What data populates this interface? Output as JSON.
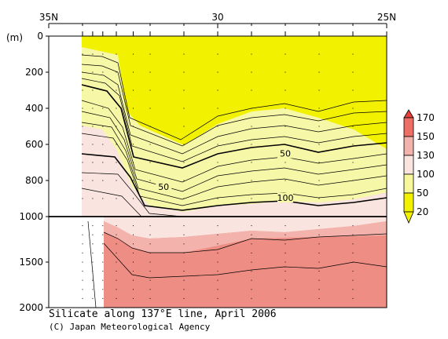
{
  "chart_data": {
    "type": "contour",
    "title": "Silicate along 137°E line, April 2006",
    "credit": "(C) Japan Meteorological Agency",
    "yunit": "(m)",
    "x_ticks": [
      {
        "lat": 35,
        "label": "35N"
      },
      {
        "lat": 30,
        "label": "30"
      },
      {
        "lat": 25,
        "label": "25N"
      }
    ],
    "xlim": [
      35,
      25
    ],
    "y_ticks_upper": [
      0,
      200,
      400,
      600,
      800,
      1000
    ],
    "y_ticks_lower": [
      1500,
      2000
    ],
    "y_ticks_lower_labels": [
      "1000",
      "1500",
      "2000"
    ],
    "upper_range": [
      0,
      1000
    ],
    "lower_range": [
      1000,
      2000
    ],
    "stations": [
      34.0,
      33.7,
      33.4,
      33.0,
      32.5,
      32.0,
      31.0,
      30.0,
      29.0,
      28.0,
      27.0,
      26.0,
      25.0
    ],
    "legend": {
      "levels": [
        "170",
        "150",
        "130",
        "100",
        "50",
        "20"
      ],
      "colors": [
        "#e8413c",
        "#ee6f66",
        "#f3b2ab",
        "#f9e4df",
        "#f7f79c",
        "#f2f200"
      ]
    },
    "contour_labels": [
      {
        "text": "50",
        "lat": 31.6,
        "depth": 840
      },
      {
        "text": "50",
        "lat": 28.0,
        "depth": 655
      },
      {
        "text": "100",
        "lat": 28.0,
        "depth": 900
      }
    ]
  }
}
